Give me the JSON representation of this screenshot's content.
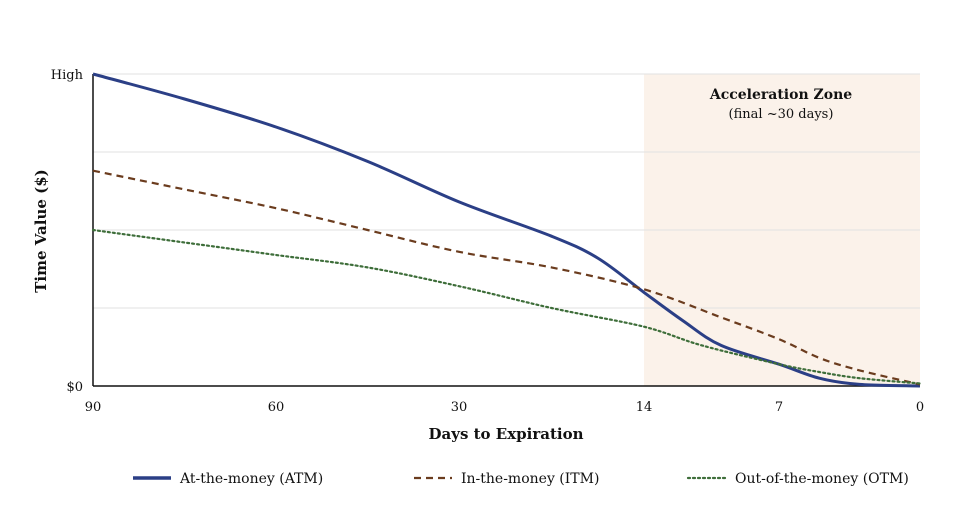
{
  "chart_data": {
    "type": "line",
    "title": "",
    "xlabel": "Days to Expiration",
    "ylabel": "Time Value ($)",
    "x_ticks": [
      "90",
      "60",
      "30",
      "14",
      "7",
      "0"
    ],
    "y_ticks": [
      "$0",
      "High"
    ],
    "ylim": [
      0,
      100
    ],
    "grid": true,
    "legend_position": "bottom",
    "annotation": {
      "title": "Acceleration Zone",
      "subtitle": "(final ~30 days)",
      "color": "#fbf2ea"
    },
    "series": [
      {
        "name": "At-the-money (ATM)",
        "color": "#2b3f86",
        "style": "solid",
        "points": [
          [
            90,
            100
          ],
          [
            75,
            92
          ],
          [
            60,
            83
          ],
          [
            45,
            72
          ],
          [
            30,
            59
          ],
          [
            22,
            48
          ],
          [
            18,
            41
          ],
          [
            14,
            30
          ],
          [
            12,
            21
          ],
          [
            10,
            13
          ],
          [
            7,
            7
          ],
          [
            5,
            2.5
          ],
          [
            3,
            0.5
          ],
          [
            0,
            0
          ]
        ]
      },
      {
        "name": "In-the-money (ITM)",
        "color": "#6b3c1e",
        "style": "dashed",
        "points": [
          [
            90,
            69
          ],
          [
            75,
            63
          ],
          [
            60,
            57
          ],
          [
            45,
            50
          ],
          [
            30,
            43
          ],
          [
            22,
            38
          ],
          [
            14,
            31
          ],
          [
            10,
            22
          ],
          [
            7,
            15
          ],
          [
            5,
            9
          ],
          [
            3,
            5
          ],
          [
            0,
            0.5
          ]
        ]
      },
      {
        "name": "Out-of-the-money (OTM)",
        "color": "#3e6e3a",
        "style": "dotted",
        "points": [
          [
            90,
            50
          ],
          [
            75,
            46
          ],
          [
            60,
            42
          ],
          [
            45,
            38
          ],
          [
            30,
            32
          ],
          [
            22,
            25
          ],
          [
            14,
            19
          ],
          [
            11,
            13
          ],
          [
            7,
            7
          ],
          [
            5,
            4.5
          ],
          [
            3,
            2.5
          ],
          [
            0,
            0.8
          ]
        ]
      }
    ]
  }
}
